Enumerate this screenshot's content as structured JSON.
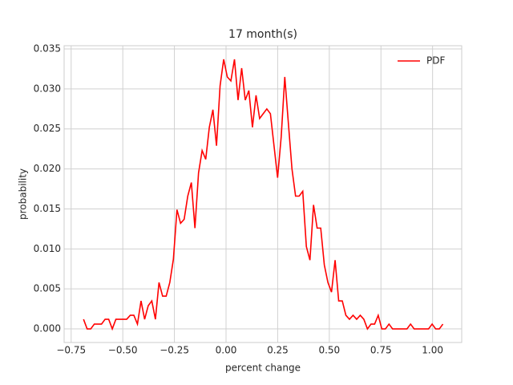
{
  "chart_data": {
    "type": "line",
    "title": "17 month(s)",
    "xlabel": "percent change",
    "ylabel": "probability",
    "legend": "upper right",
    "grid": true,
    "xlim": [
      -0.784,
      1.141
    ],
    "ylim": [
      -0.0017,
      0.0354
    ],
    "xticks": [
      {
        "value": -0.75,
        "label": "−0.75"
      },
      {
        "value": -0.5,
        "label": "−0.50"
      },
      {
        "value": -0.25,
        "label": "−0.25"
      },
      {
        "value": 0,
        "label": "0.00"
      },
      {
        "value": 0.25,
        "label": "0.25"
      },
      {
        "value": 0.5,
        "label": "0.50"
      },
      {
        "value": 0.75,
        "label": "0.75"
      },
      {
        "value": 1,
        "label": "1.00"
      }
    ],
    "yticks": [
      {
        "value": 0,
        "label": "0.000"
      },
      {
        "value": 0.005,
        "label": "0.005"
      },
      {
        "value": 0.01,
        "label": "0.010"
      },
      {
        "value": 0.015,
        "label": "0.015"
      },
      {
        "value": 0.02,
        "label": "0.020"
      },
      {
        "value": 0.025,
        "label": "0.025"
      },
      {
        "value": 0.03,
        "label": "0.030"
      },
      {
        "value": 0.035,
        "label": "0.035"
      }
    ],
    "x": [
      -0.69,
      -0.6726,
      -0.6552,
      -0.6378,
      -0.6204,
      -0.603,
      -0.5856,
      -0.5682,
      -0.5508,
      -0.5334,
      -0.516,
      -0.4986,
      -0.4812,
      -0.4638,
      -0.4464,
      -0.429,
      -0.4116,
      -0.3942,
      -0.3768,
      -0.3594,
      -0.342,
      -0.3246,
      -0.3072,
      -0.2898,
      -0.2724,
      -0.255,
      -0.2376,
      -0.2202,
      -0.2028,
      -0.1854,
      -0.168,
      -0.1506,
      -0.1332,
      -0.1158,
      -0.0984,
      -0.081,
      -0.0636,
      -0.0462,
      -0.0288,
      -0.0114,
      0.006,
      0.0234,
      0.0408,
      0.0582,
      0.0756,
      0.093,
      0.1104,
      0.1278,
      0.1452,
      0.1626,
      0.18,
      0.1974,
      0.2148,
      0.2322,
      0.2496,
      0.267,
      0.2844,
      0.3018,
      0.3192,
      0.3366,
      0.354,
      0.3714,
      0.3888,
      0.4062,
      0.4236,
      0.441,
      0.4584,
      0.4758,
      0.4932,
      0.5106,
      0.528,
      0.5454,
      0.5628,
      0.5802,
      0.5976,
      0.615,
      0.6324,
      0.6498,
      0.6672,
      0.6846,
      0.702,
      0.7194,
      0.7368,
      0.7542,
      0.7716,
      0.789,
      0.8064,
      0.8238,
      0.8412,
      0.8586,
      0.876,
      0.8934,
      0.9108,
      0.9282,
      0.9456,
      0.963,
      0.9804,
      0.9978,
      1.0152,
      1.0326,
      1.05
    ],
    "series": [
      {
        "name": "PDF",
        "color": "#ff0000",
        "values": [
          0.0012,
          0,
          0,
          0.0006,
          0.0006,
          0.0006,
          0.0012,
          0.0012,
          0,
          0.0012,
          0.0012,
          0.0012,
          0.0012,
          0.0017,
          0.0017,
          0.0006,
          0.0035,
          0.0012,
          0.0029,
          0.0035,
          0.0012,
          0.0058,
          0.0041,
          0.0041,
          0.0058,
          0.0087,
          0.0149,
          0.0132,
          0.0137,
          0.0166,
          0.0183,
          0.0126,
          0.0195,
          0.0223,
          0.0212,
          0.0252,
          0.0274,
          0.0229,
          0.0304,
          0.0337,
          0.0315,
          0.031,
          0.0337,
          0.0286,
          0.0326,
          0.0286,
          0.0298,
          0.0252,
          0.0292,
          0.0263,
          0.0269,
          0.0275,
          0.0269,
          0.0229,
          0.0189,
          0.024,
          0.0315,
          0.0257,
          0.02,
          0.0166,
          0.0166,
          0.0172,
          0.0103,
          0.0086,
          0.0155,
          0.0126,
          0.0126,
          0.008,
          0.0058,
          0.0046,
          0.0086,
          0.0035,
          0.0035,
          0.0017,
          0.0012,
          0.0017,
          0.0012,
          0.0017,
          0.0012,
          0,
          0.0006,
          0.0006,
          0.0017,
          0,
          0,
          0.0006,
          0,
          0,
          0,
          0,
          0,
          0.0006,
          0,
          0,
          0,
          0,
          0,
          0.0006,
          0,
          0,
          0.0006
        ]
      }
    ]
  }
}
